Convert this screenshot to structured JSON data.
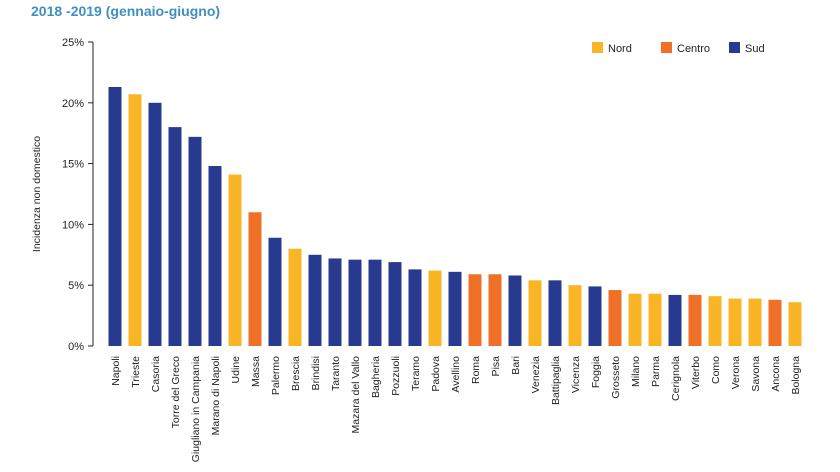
{
  "subtitle": "2018 -2019 (gennaio-giugno)",
  "chart_data": {
    "type": "bar",
    "ylabel": "Incidenza non domestico",
    "ylim": [
      0,
      25
    ],
    "yticks": [
      0,
      5,
      10,
      15,
      20,
      25
    ],
    "ytick_suffix": "%",
    "legend": [
      {
        "name": "Nord",
        "color": "#f9b523"
      },
      {
        "name": "Centro",
        "color": "#ef7127"
      },
      {
        "name": "Sud",
        "color": "#283a8f"
      }
    ],
    "categories": [
      "Napoli",
      "Trieste",
      "Casoria",
      "Torre del Greco",
      "Giugliano in Campania",
      "Marano di Napoli",
      "Udine",
      "Massa",
      "Palermo",
      "Brescia",
      "Brindisi",
      "Taranto",
      "Mazara del Vallo",
      "Bagheria",
      "Pozzuoli",
      "Teramo",
      "Padova",
      "Avellino",
      "Roma",
      "Pisa",
      "Bari",
      "Venezia",
      "Battipaglia",
      "Vicenza",
      "Foggia",
      "Grosseto",
      "Milano",
      "Parma",
      "Cerignola",
      "Viterbo",
      "Como",
      "Verona",
      "Savona",
      "Ancona",
      "Bologna"
    ],
    "values": [
      21.3,
      20.7,
      20.0,
      18.0,
      17.2,
      14.8,
      14.1,
      11.0,
      8.9,
      8.0,
      7.5,
      7.2,
      7.1,
      7.1,
      6.9,
      6.3,
      6.2,
      6.1,
      5.9,
      5.9,
      5.8,
      5.4,
      5.4,
      5.0,
      4.9,
      4.6,
      4.3,
      4.3,
      4.2,
      4.2,
      4.1,
      3.9,
      3.9,
      3.8,
      3.6
    ],
    "groups": [
      "Sud",
      "Nord",
      "Sud",
      "Sud",
      "Sud",
      "Sud",
      "Nord",
      "Centro",
      "Sud",
      "Nord",
      "Sud",
      "Sud",
      "Sud",
      "Sud",
      "Sud",
      "Sud",
      "Nord",
      "Sud",
      "Centro",
      "Centro",
      "Sud",
      "Nord",
      "Sud",
      "Nord",
      "Sud",
      "Centro",
      "Nord",
      "Nord",
      "Sud",
      "Centro",
      "Nord",
      "Nord",
      "Nord",
      "Centro",
      "Nord"
    ]
  }
}
